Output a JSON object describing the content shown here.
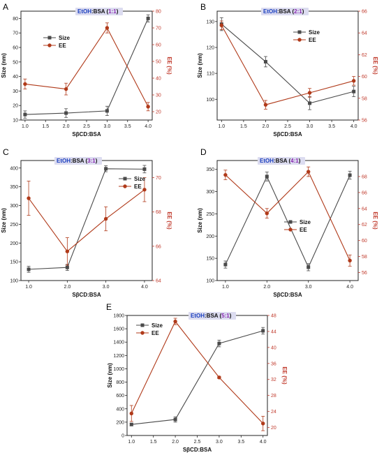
{
  "colors": {
    "size": "#4a4a4a",
    "ee": "#b03a1a",
    "ee_axis": "#c0392b",
    "label_blue": "#1a3fbf",
    "label_purple": "#8a2ab0",
    "label_box": "#dcdcf0"
  },
  "chart_data": [
    {
      "type": "line",
      "panel": "A",
      "label": {
        "prefix": "EtOH",
        "mid": ":BSA (",
        "ratio": "1:1",
        "suffix": ")"
      },
      "xlabel": "SβCD:BSA",
      "ylabel": "Size (nm)",
      "y2label": "EE (%)",
      "x": [
        1.0,
        2.0,
        3.0,
        4.0
      ],
      "xlim": [
        0.9,
        4.1
      ],
      "xticks": [
        "1.0",
        "1.5",
        "2.0",
        "2.5",
        "3.0",
        "3.5",
        "4.0"
      ],
      "ylim": [
        10,
        85
      ],
      "yticks": [
        10,
        20,
        30,
        40,
        50,
        60,
        70,
        80
      ],
      "y2lim": [
        15,
        80
      ],
      "y2ticks": [
        20,
        30,
        40,
        50,
        60,
        70,
        80
      ],
      "legend": "upper-left",
      "series": [
        {
          "name": "Size",
          "axis": "left",
          "marker": "square",
          "values": [
            13.8,
            14.8,
            16.3,
            80.0
          ],
          "errors": [
            2.5,
            3.0,
            3.2,
            2.5
          ]
        },
        {
          "name": "EE",
          "axis": "right",
          "marker": "circle",
          "values": [
            36.5,
            33.5,
            70.0,
            23.0
          ],
          "errors": [
            3.0,
            3.5,
            3.0,
            2.5
          ]
        }
      ]
    },
    {
      "type": "line",
      "panel": "B",
      "label": {
        "prefix": "EtOH",
        "mid": ":BSA (",
        "ratio": "2:1",
        "suffix": ")"
      },
      "xlabel": "SβCD:BSA",
      "ylabel": "Size (nm)",
      "y2label": "EE (%)",
      "x": [
        1.0,
        2.0,
        3.0,
        4.0
      ],
      "xlim": [
        0.9,
        4.1
      ],
      "xticks": [
        "1.0",
        "1.5",
        "2.0",
        "2.5",
        "3.0",
        "3.5",
        "4.0"
      ],
      "ylim": [
        92,
        134
      ],
      "yticks": [
        100,
        110,
        120,
        130
      ],
      "y2lim": [
        56,
        66
      ],
      "y2ticks": [
        56,
        58,
        60,
        62,
        64,
        66
      ],
      "legend": "upper-right",
      "series": [
        {
          "name": "Size",
          "axis": "left",
          "marker": "square",
          "values": [
            129.0,
            114.5,
            98.5,
            103.0
          ],
          "errors": [
            2.5,
            2.0,
            2.5,
            2.0
          ]
        },
        {
          "name": "EE",
          "axis": "right",
          "marker": "circle",
          "values": [
            64.7,
            57.4,
            58.5,
            59.6
          ],
          "errors": [
            0.4,
            0.4,
            0.4,
            0.4
          ]
        }
      ]
    },
    {
      "type": "line",
      "panel": "C",
      "label": {
        "prefix": "EtOH",
        "mid": ":BSA (",
        "ratio": "3:1",
        "suffix": ")"
      },
      "xlabel": "SβCD:BSA",
      "ylabel": "Size (nm)",
      "y2label": "EE (%)",
      "x": [
        1.0,
        2.0,
        3.0,
        4.0
      ],
      "xlim": [
        0.8,
        4.2
      ],
      "xticks": [
        "1.0",
        "2.0",
        "3.0",
        "4.0"
      ],
      "ylim": [
        100,
        420
      ],
      "yticks": [
        100,
        150,
        200,
        250,
        300,
        350,
        400
      ],
      "y2lim": [
        64,
        71
      ],
      "y2ticks": [
        64,
        66,
        68,
        70
      ],
      "legend": "upper-right",
      "series": [
        {
          "name": "Size",
          "axis": "left",
          "marker": "square",
          "values": [
            130,
            135,
            398,
            397
          ],
          "errors": [
            8,
            8,
            8,
            10
          ]
        },
        {
          "name": "EE",
          "axis": "right",
          "marker": "circle",
          "values": [
            68.8,
            65.7,
            67.6,
            69.3
          ],
          "errors": [
            1.0,
            0.8,
            0.7,
            0.7
          ]
        }
      ]
    },
    {
      "type": "line",
      "panel": "D",
      "label": {
        "prefix": "EtOH",
        "mid": ":BSA (",
        "ratio": "4:1",
        "suffix": ")"
      },
      "xlabel": "SβCD:BSA",
      "ylabel": "Size (nm)",
      "y2label": "EE (%)",
      "x": [
        1.0,
        2.0,
        3.0,
        4.0
      ],
      "xlim": [
        0.8,
        4.2
      ],
      "xticks": [
        "1.0",
        "2.0",
        "3.0",
        "4.0"
      ],
      "ylim": [
        100,
        370
      ],
      "yticks": [
        100,
        150,
        200,
        250,
        300,
        350
      ],
      "y2lim": [
        55,
        70
      ],
      "y2ticks": [
        56,
        58,
        60,
        62,
        64,
        66,
        68
      ],
      "legend": "lower-center",
      "series": [
        {
          "name": "Size",
          "axis": "left",
          "marker": "square",
          "values": [
            136,
            334,
            130,
            337
          ],
          "errors": [
            8,
            10,
            8,
            9
          ]
        },
        {
          "name": "EE",
          "axis": "right",
          "marker": "circle",
          "values": [
            68.2,
            63.4,
            68.6,
            57.5
          ],
          "errors": [
            0.6,
            0.6,
            0.6,
            0.7
          ]
        }
      ]
    },
    {
      "type": "line",
      "panel": "E",
      "label": {
        "prefix": "EtOH",
        "mid": ":BSA (",
        "ratio": "5:1",
        "suffix": ")"
      },
      "xlabel": "SβCD:BSA",
      "ylabel": "Size (nm)",
      "y2label": "EE (%)",
      "x": [
        1.0,
        2.0,
        3.0,
        4.0
      ],
      "xlim": [
        0.9,
        4.1
      ],
      "xticks": [
        "1.0",
        "1.5",
        "2.0",
        "2.5",
        "3.0",
        "3.5",
        "4.0"
      ],
      "ylim": [
        0,
        1800
      ],
      "yticks": [
        0,
        200,
        400,
        600,
        800,
        1000,
        1200,
        1400,
        1600,
        1800
      ],
      "y2lim": [
        18,
        48
      ],
      "y2ticks": [
        20,
        24,
        28,
        32,
        36,
        40,
        44,
        48
      ],
      "legend": "upper-left",
      "series": [
        {
          "name": "Size",
          "axis": "left",
          "marker": "square",
          "values": [
            165,
            240,
            1380,
            1570
          ],
          "errors": [
            20,
            40,
            50,
            50
          ]
        },
        {
          "name": "EE",
          "axis": "right",
          "marker": "circle",
          "values": [
            23.5,
            46.5,
            32.5,
            21.0
          ],
          "errors": [
            2.0,
            0.8,
            0.3,
            1.8
          ]
        }
      ]
    }
  ]
}
